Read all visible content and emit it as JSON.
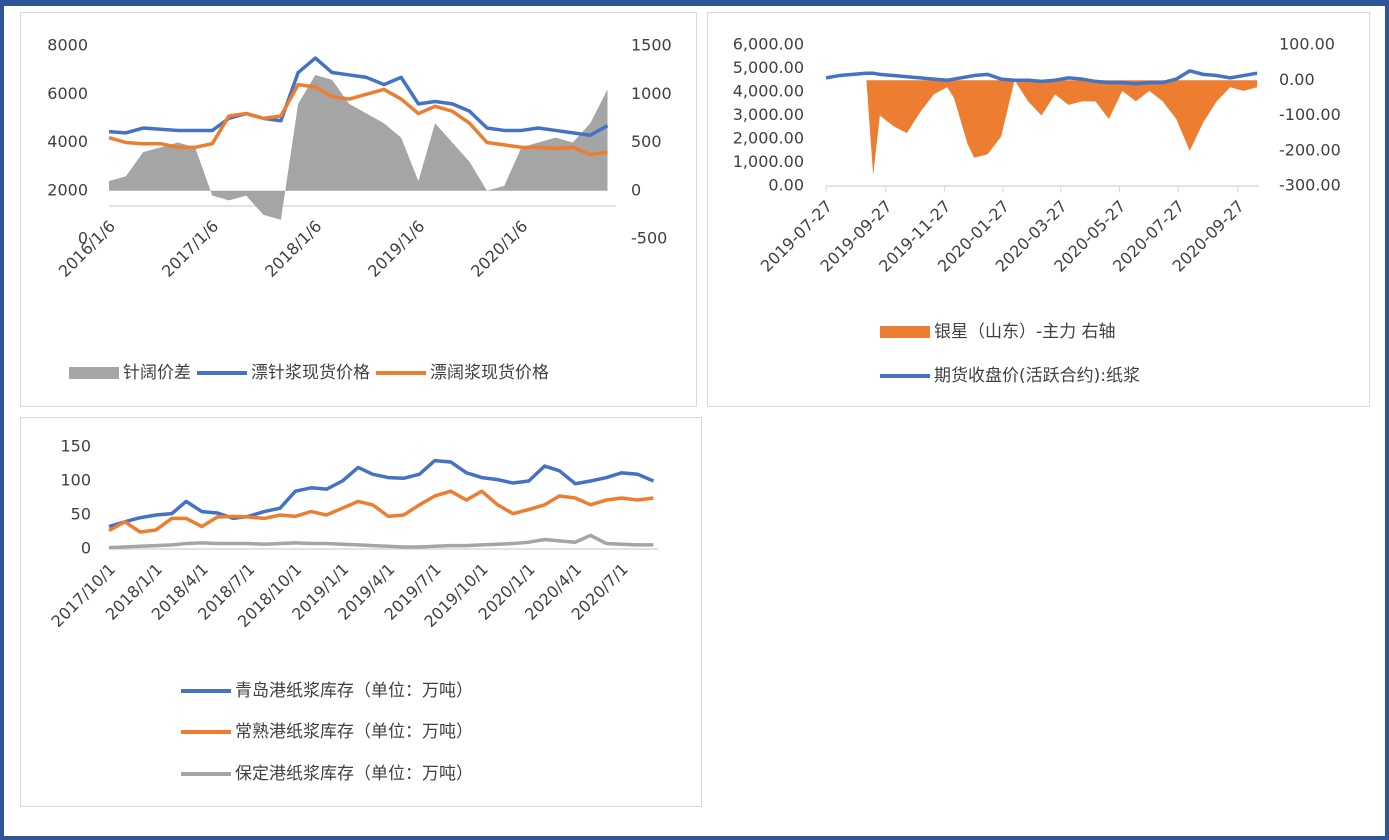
{
  "chart_data": [
    {
      "type": "line",
      "x": [
        "2016/1/6",
        "2016/3/6",
        "2016/5/6",
        "2016/7/6",
        "2016/9/6",
        "2016/11/6",
        "2017/1/6",
        "2017/3/6",
        "2017/5/6",
        "2017/7/6",
        "2017/9/6",
        "2017/11/6",
        "2018/1/6",
        "2018/3/6",
        "2018/5/6",
        "2018/7/6",
        "2018/9/6",
        "2018/11/6",
        "2019/1/6",
        "2019/3/6",
        "2019/5/6",
        "2019/7/6",
        "2019/9/6",
        "2019/11/6",
        "2020/1/6",
        "2020/3/6",
        "2020/5/6",
        "2020/7/6",
        "2020/9/6",
        "2020/11/6"
      ],
      "xlim": [
        "2016/1/6",
        "2020/12/6"
      ],
      "xticks": [
        "2016/1/6",
        "2017/1/6",
        "2018/1/6",
        "2019/1/6",
        "2020/1/6"
      ],
      "ylim": [
        0,
        8000
      ],
      "yticks": [
        0,
        2000,
        4000,
        6000,
        8000
      ],
      "y2lim": [
        -500,
        1500
      ],
      "y2ticks": [
        -500,
        0,
        500,
        1000,
        1500
      ],
      "series": [
        {
          "name": "针阔价差",
          "type": "area",
          "axis": "y2",
          "color": "#a5a5a5",
          "values": [
            100,
            150,
            400,
            450,
            500,
            450,
            -50,
            -100,
            -50,
            -250,
            -300,
            900,
            1200,
            1150,
            900,
            800,
            700,
            550,
            100,
            700,
            500,
            300,
            0,
            50,
            450,
            500,
            550,
            500,
            700,
            1050
          ]
        },
        {
          "name": "漂针浆现货价格",
          "type": "line",
          "color": "#4472c4",
          "values": [
            4450,
            4400,
            4600,
            4550,
            4500,
            4500,
            4500,
            5000,
            5200,
            5000,
            4900,
            6900,
            7500,
            6900,
            6800,
            6700,
            6400,
            6700,
            5600,
            5700,
            5600,
            5300,
            4600,
            4500,
            4500,
            4600,
            4500,
            4400,
            4300,
            4700
          ]
        },
        {
          "name": "漂阔浆现货价格",
          "type": "line",
          "color": "#ed7d31",
          "values": [
            4200,
            4000,
            3950,
            3950,
            3800,
            3800,
            3950,
            5100,
            5200,
            5000,
            5100,
            6400,
            6300,
            5900,
            5800,
            6000,
            6200,
            5800,
            5200,
            5500,
            5300,
            4800,
            4000,
            3900,
            3800,
            3800,
            3750,
            3800,
            3500,
            3600
          ]
        }
      ]
    },
    {
      "type": "line",
      "x": [
        "2019-07-27",
        "2019-08-10",
        "2019-08-24",
        "2019-09-07",
        "2019-09-14",
        "2019-09-21",
        "2019-10-05",
        "2019-10-19",
        "2019-11-02",
        "2019-11-16",
        "2019-11-30",
        "2019-12-07",
        "2019-12-21",
        "2019-12-28",
        "2020-01-11",
        "2020-01-25",
        "2020-02-08",
        "2020-02-22",
        "2020-03-07",
        "2020-03-21",
        "2020-04-04",
        "2020-04-18",
        "2020-05-02",
        "2020-05-16",
        "2020-05-30",
        "2020-06-13",
        "2020-06-27",
        "2020-07-11",
        "2020-07-25",
        "2020-08-08",
        "2020-08-22",
        "2020-09-05",
        "2020-09-19",
        "2020-10-03",
        "2020-10-17"
      ],
      "xlim": [
        "2019-07-27",
        "2020-10-19"
      ],
      "xticks": [
        "2019-07-27",
        "2019-09-27",
        "2019-11-27",
        "2020-01-27",
        "2020-03-27",
        "2020-05-27",
        "2020-07-27",
        "2020-09-27"
      ],
      "ylim": [
        0,
        6000
      ],
      "yticks": [
        {
          "value": 0,
          "label": "0.00"
        },
        {
          "value": 1000,
          "label": "1,000.00"
        },
        {
          "value": 2000,
          "label": "2,000.00"
        },
        {
          "value": 3000,
          "label": "3,000.00"
        },
        {
          "value": 4000,
          "label": "4,000.00"
        },
        {
          "value": 5000,
          "label": "5,000.00"
        },
        {
          "value": 6000,
          "label": "6,000.00"
        }
      ],
      "y2lim": [
        -300,
        100
      ],
      "y2ticks": [
        {
          "value": -300,
          "label": "-300.00"
        },
        {
          "value": -200,
          "label": "-200.00"
        },
        {
          "value": -100,
          "label": "-100.00"
        },
        {
          "value": 0,
          "label": "0.00"
        },
        {
          "value": 100,
          "label": "100.00"
        }
      ],
      "series": [
        {
          "name": "银星（山东）-主力 右轴",
          "type": "area",
          "axis": "y2",
          "color": "#ed7d31",
          "values": [
            0,
            0,
            0,
            0,
            -270,
            -100,
            -130,
            -150,
            -90,
            -40,
            -20,
            -50,
            -180,
            -220,
            -210,
            -160,
            0,
            -60,
            -100,
            -40,
            -70,
            -60,
            -60,
            -110,
            -30,
            -60,
            -30,
            -60,
            -110,
            -200,
            -120,
            -60,
            -20,
            -30,
            -20
          ]
        },
        {
          "name": "期货收盘价(活跃合约):纸浆",
          "type": "line",
          "color": "#4472c4",
          "values": [
            4600,
            4700,
            4750,
            4800,
            4800,
            4750,
            4700,
            4650,
            4600,
            4550,
            4500,
            4550,
            4650,
            4700,
            4750,
            4550,
            4500,
            4500,
            4450,
            4500,
            4600,
            4550,
            4450,
            4400,
            4400,
            4350,
            4400,
            4400,
            4550,
            4900,
            4750,
            4700,
            4600,
            4700,
            4800
          ]
        }
      ]
    },
    {
      "type": "line",
      "x": [
        "2017/10/1",
        "2017/11/1",
        "2017/12/1",
        "2018/1/1",
        "2018/2/1",
        "2018/3/1",
        "2018/4/1",
        "2018/5/1",
        "2018/6/1",
        "2018/7/1",
        "2018/8/1",
        "2018/9/1",
        "2018/10/1",
        "2018/11/1",
        "2018/12/1",
        "2019/1/1",
        "2019/2/1",
        "2019/3/1",
        "2019/4/1",
        "2019/5/1",
        "2019/6/1",
        "2019/7/1",
        "2019/8/1",
        "2019/9/1",
        "2019/10/1",
        "2019/11/1",
        "2019/12/1",
        "2020/1/1",
        "2020/2/1",
        "2020/3/1",
        "2020/4/1",
        "2020/5/1",
        "2020/6/1",
        "2020/7/1",
        "2020/8/1",
        "2020/9/1"
      ],
      "xlim": [
        "2017/10/1",
        "2020/9/10"
      ],
      "xticks": [
        "2017/10/1",
        "2018/1/1",
        "2018/4/1",
        "2018/7/1",
        "2018/10/1",
        "2019/1/1",
        "2019/4/1",
        "2019/7/1",
        "2019/10/1",
        "2020/1/1",
        "2020/4/1",
        "2020/7/1"
      ],
      "ylim": [
        0,
        150
      ],
      "yticks": [
        0,
        50,
        100,
        150
      ],
      "series": [
        {
          "name": "青岛港纸浆库存（单位：万吨）",
          "type": "line",
          "color": "#4472c4",
          "values": [
            33,
            40,
            46,
            50,
            52,
            70,
            55,
            53,
            45,
            48,
            55,
            60,
            85,
            90,
            88,
            100,
            120,
            110,
            105,
            104,
            110,
            130,
            128,
            112,
            105,
            102,
            97,
            100,
            122,
            115,
            96,
            100,
            105,
            112,
            110,
            100
          ]
        },
        {
          "name": "常熟港纸浆库存（单位：万吨）",
          "type": "line",
          "color": "#ed7d31",
          "values": [
            27,
            40,
            25,
            28,
            45,
            45,
            33,
            47,
            48,
            47,
            45,
            50,
            48,
            55,
            50,
            60,
            70,
            65,
            48,
            50,
            65,
            78,
            85,
            72,
            85,
            65,
            52,
            58,
            65,
            78,
            75,
            65,
            72,
            75,
            72,
            75
          ]
        },
        {
          "name": "保定港纸浆库存（单位：万吨）",
          "type": "line",
          "color": "#a5a5a5",
          "values": [
            2,
            3,
            4,
            5,
            6,
            8,
            9,
            8,
            8,
            8,
            7,
            8,
            9,
            8,
            8,
            7,
            6,
            5,
            4,
            3,
            3,
            4,
            5,
            5,
            6,
            7,
            8,
            10,
            14,
            12,
            10,
            20,
            8,
            7,
            6,
            6
          ]
        }
      ]
    }
  ]
}
